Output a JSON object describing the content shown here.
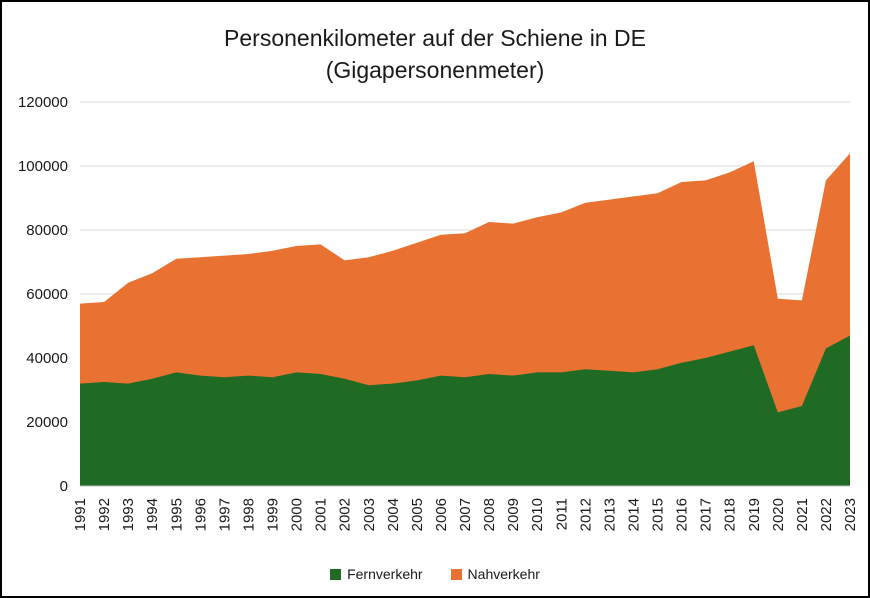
{
  "chart_data": {
    "type": "area",
    "stacked": true,
    "title_line1": "Personenkilometer auf der Schiene in DE",
    "title_line2": "(Gigapersonenmeter)",
    "categories": [
      "1991",
      "1992",
      "1993",
      "1994",
      "1995",
      "1996",
      "1997",
      "1998",
      "1999",
      "2000",
      "2001",
      "2002",
      "2003",
      "2004",
      "2005",
      "2006",
      "2007",
      "2008",
      "2009",
      "2010",
      "2011",
      "2012",
      "2013",
      "2014",
      "2015",
      "2016",
      "2017",
      "2018",
      "2019",
      "2020",
      "2021",
      "2022",
      "2023"
    ],
    "series": [
      {
        "name": "Fernverkehr",
        "color": "#1f6b24",
        "values": [
          32000,
          32500,
          32000,
          33500,
          35500,
          34500,
          34000,
          34500,
          34000,
          35500,
          35000,
          33500,
          31500,
          32000,
          33000,
          34500,
          34000,
          35000,
          34500,
          35500,
          35500,
          36500,
          36000,
          35500,
          36500,
          38500,
          40000,
          42000,
          44000,
          23000,
          25000,
          43000,
          47000
        ]
      },
      {
        "name": "Nahverkehr",
        "color": "#e97132",
        "values": [
          25000,
          25000,
          31500,
          33000,
          35500,
          37000,
          38000,
          38000,
          39500,
          39500,
          40500,
          37000,
          40000,
          41500,
          43000,
          44000,
          45000,
          47500,
          47500,
          48500,
          50000,
          52000,
          53500,
          55000,
          55000,
          56500,
          55500,
          56000,
          57500,
          35500,
          33000,
          52500,
          57000
        ]
      }
    ],
    "ylim": [
      0,
      120000
    ],
    "ytick_step": 20000,
    "yticks": [
      "0",
      "20000",
      "40000",
      "60000",
      "80000",
      "100000",
      "120000"
    ],
    "grid": true,
    "grid_color": "#d9d9d9",
    "axis_color": "#bfbfbf",
    "tick_label_color": "#1a1a1a",
    "legend_position": "bottom"
  }
}
